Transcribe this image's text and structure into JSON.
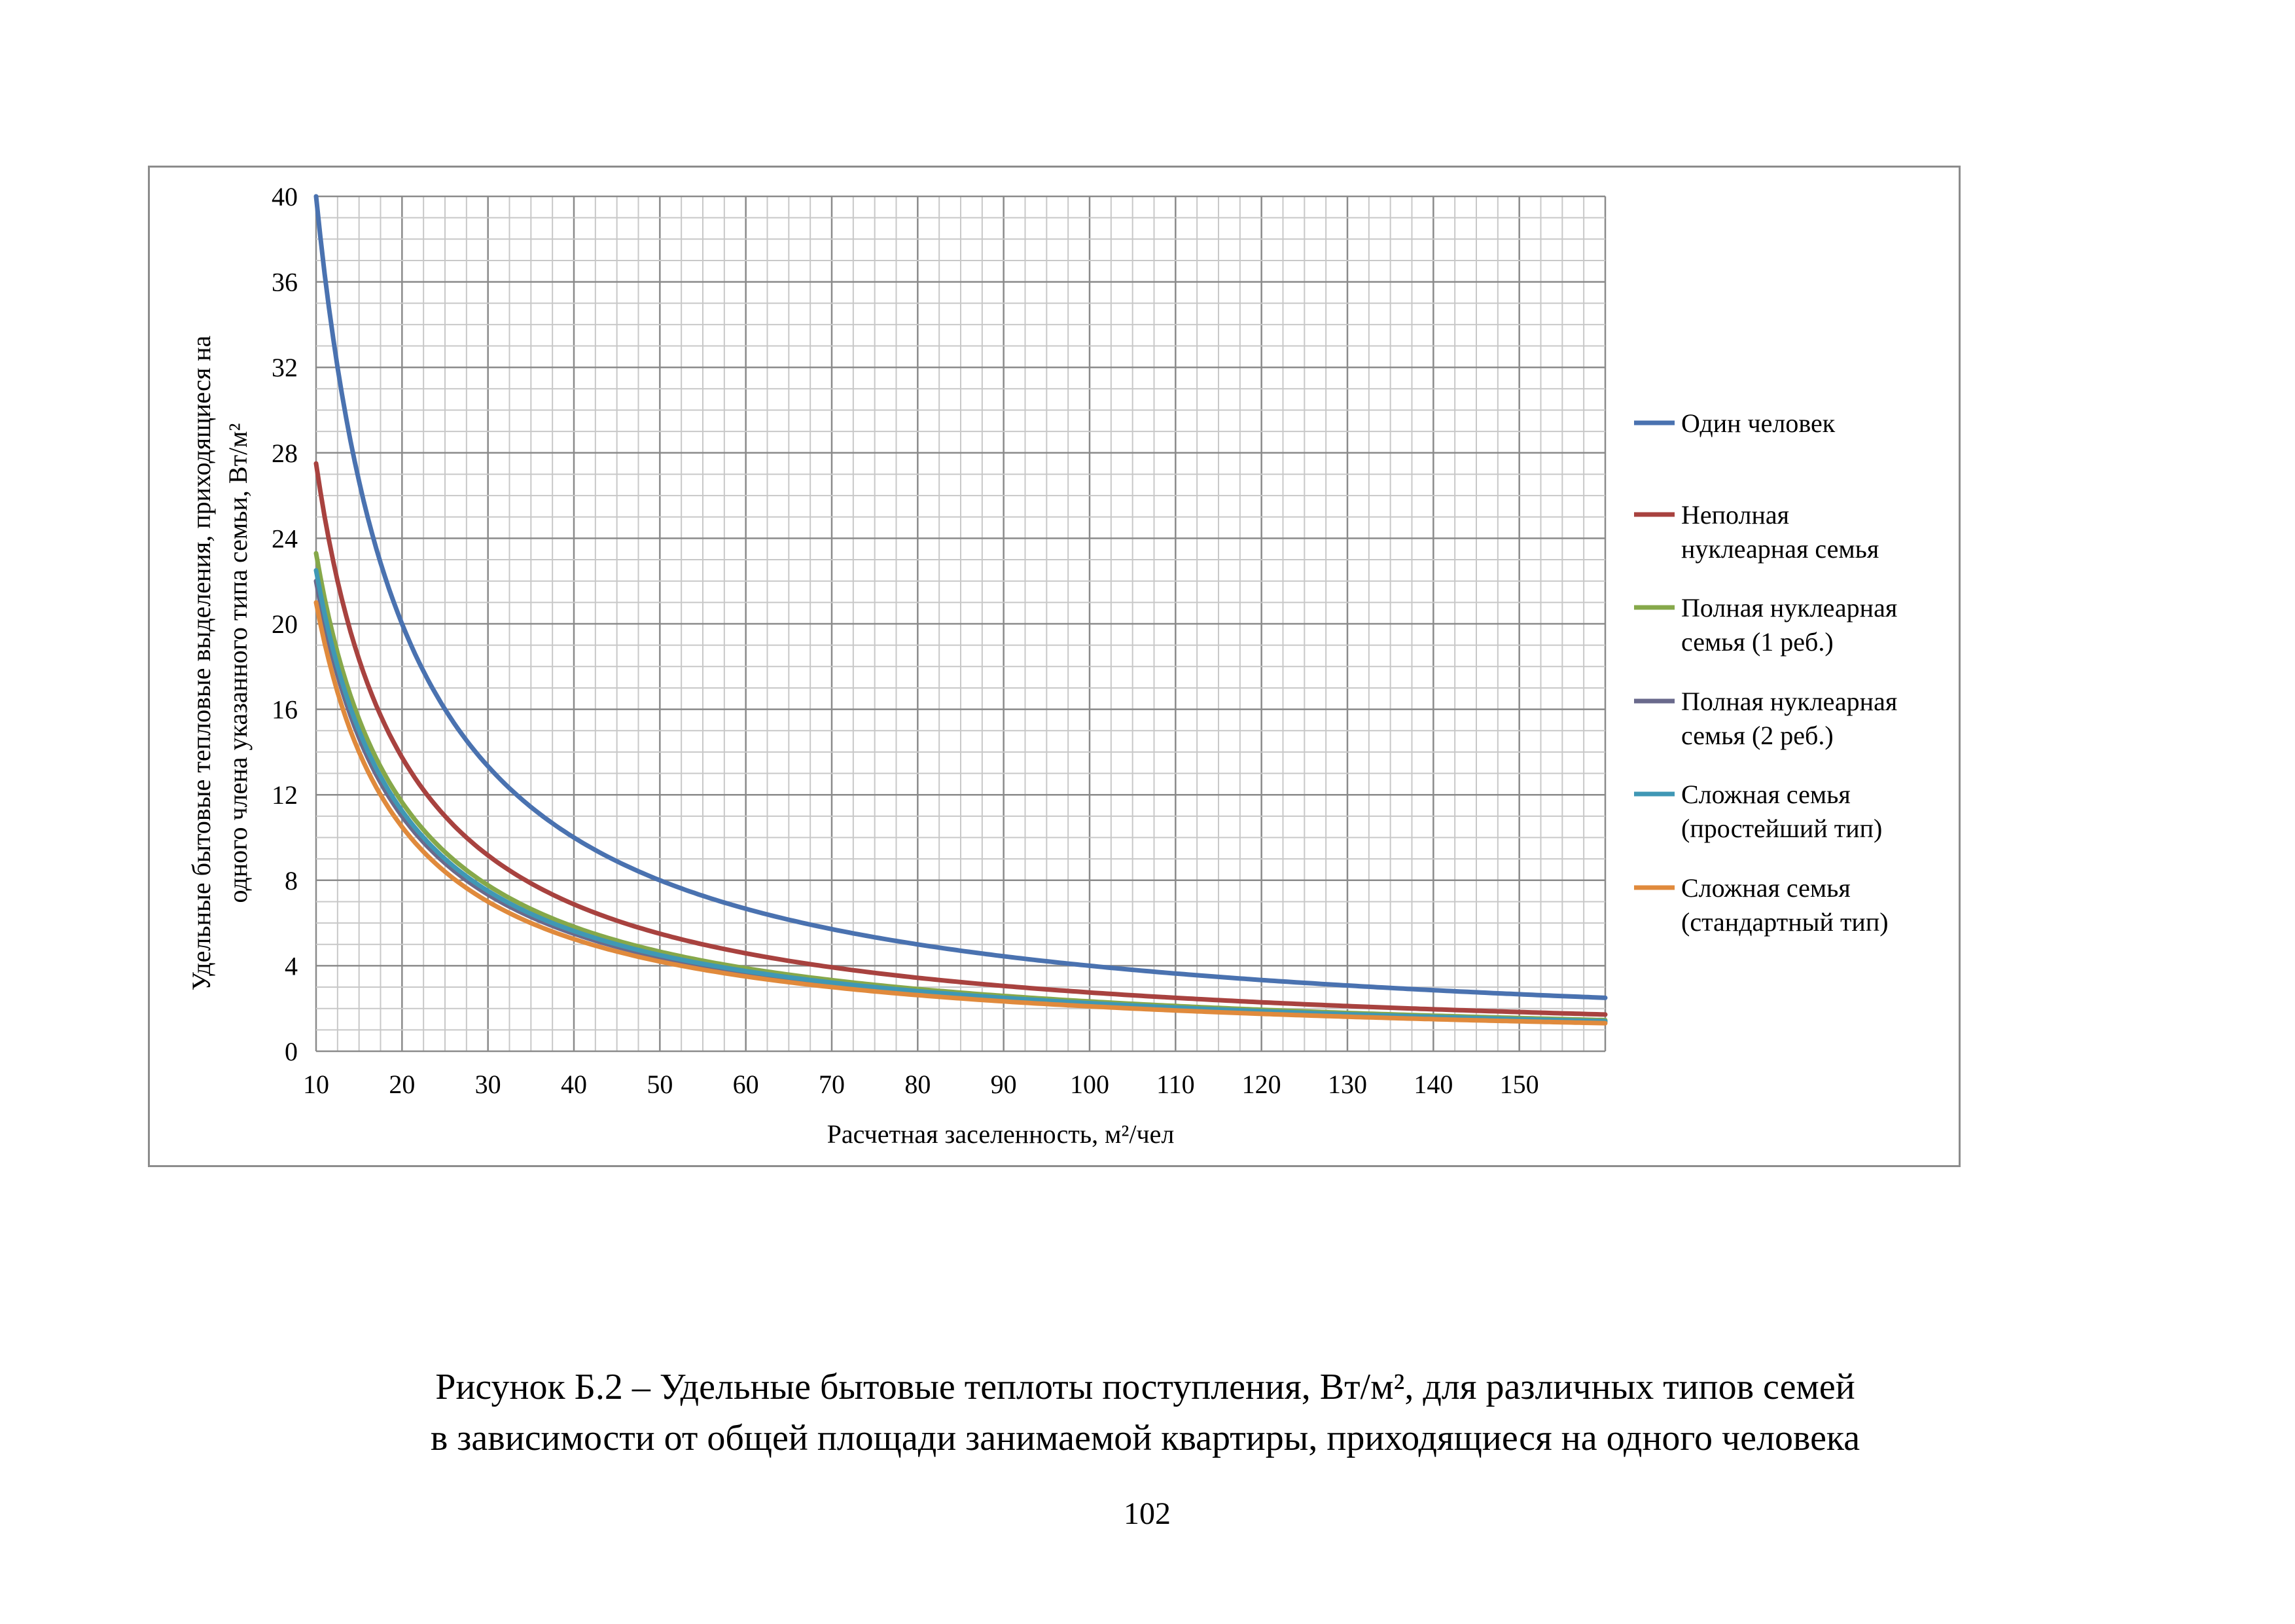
{
  "chart_data": {
    "type": "line",
    "xlabel": "Расчетная заселенность, м²/чел",
    "ylabel_line1": "Удельные бытовые тепловые выделения, приходящиеся на",
    "ylabel_line2": "одного члена указанного типа семьи, Вт/м²",
    "xlim": [
      10,
      160
    ],
    "ylim": [
      0,
      40
    ],
    "x_ticks": [
      10,
      20,
      30,
      40,
      50,
      60,
      70,
      80,
      90,
      100,
      110,
      120,
      130,
      140,
      150
    ],
    "y_ticks": [
      0,
      4,
      8,
      12,
      16,
      20,
      24,
      28,
      32,
      36,
      40
    ],
    "grid": true,
    "legend_position": "right",
    "x": [
      10,
      12,
      14,
      16,
      18,
      20,
      25,
      30,
      35,
      40,
      50,
      60,
      70,
      80,
      90,
      100,
      110,
      120,
      130,
      140,
      150,
      160
    ],
    "series": [
      {
        "name": "Один человек",
        "color": "#4a72b0",
        "values": [
          40.0,
          33.3,
          28.6,
          25.0,
          22.2,
          20.0,
          16.0,
          13.3,
          11.4,
          10.0,
          8.0,
          6.7,
          5.7,
          5.0,
          4.4,
          4.0,
          3.6,
          3.3,
          3.1,
          2.9,
          2.7,
          2.5
        ]
      },
      {
        "name": "Неполная нуклеарная семья",
        "color": "#a8423f",
        "values": [
          27.5,
          22.9,
          19.6,
          17.2,
          15.3,
          13.8,
          11.0,
          9.2,
          7.9,
          6.9,
          5.5,
          4.6,
          3.9,
          3.4,
          3.1,
          2.75,
          2.5,
          2.3,
          2.1,
          2.0,
          1.8,
          1.7
        ]
      },
      {
        "name": "Полная нуклеарная семья (1 реб.)",
        "color": "#86a84a",
        "values": [
          23.3,
          19.4,
          16.6,
          14.6,
          12.9,
          11.7,
          9.3,
          7.8,
          6.7,
          5.8,
          4.7,
          3.9,
          3.3,
          2.9,
          2.6,
          2.3,
          2.1,
          1.9,
          1.8,
          1.7,
          1.6,
          1.5
        ]
      },
      {
        "name": "Полная нуклеарная семья (2 реб.)",
        "color": "#6a6a8c",
        "values": [
          22.0,
          18.3,
          15.7,
          13.8,
          12.2,
          11.0,
          8.8,
          7.3,
          6.3,
          5.5,
          4.4,
          3.7,
          3.1,
          2.75,
          2.4,
          2.2,
          2.0,
          1.8,
          1.7,
          1.6,
          1.5,
          1.4
        ]
      },
      {
        "name": "Сложная семья (простейший тип)",
        "color": "#3f98b5",
        "values": [
          22.5,
          18.8,
          16.1,
          14.1,
          12.5,
          11.3,
          9.0,
          7.5,
          6.4,
          5.6,
          4.5,
          3.75,
          3.2,
          2.8,
          2.5,
          2.25,
          2.0,
          1.9,
          1.7,
          1.6,
          1.5,
          1.4
        ]
      },
      {
        "name": "Сложная семья (стандартный тип)",
        "color": "#e08a3c",
        "values": [
          21.0,
          17.5,
          15.0,
          13.1,
          11.7,
          10.5,
          8.4,
          7.0,
          6.0,
          5.25,
          4.2,
          3.5,
          3.0,
          2.6,
          2.3,
          2.1,
          1.9,
          1.75,
          1.6,
          1.5,
          1.4,
          1.3
        ]
      }
    ],
    "legend_labels": [
      [
        "Один человек"
      ],
      [
        "Неполная",
        "нуклеарная семья"
      ],
      [
        "Полная нуклеарная",
        "семья (1 реб.)"
      ],
      [
        "Полная нуклеарная",
        "семья (2 реб.)"
      ],
      [
        "Сложная семья",
        "(простейший тип)"
      ],
      [
        "Сложная семья",
        "(стандартный тип)"
      ]
    ]
  },
  "caption": {
    "line1": "Рисунок Б.2 – Удельные бытовые теплоты поступления, Вт/м², для различных типов семей",
    "line2": "в зависимости от общей площади занимаемой квартиры, приходящиеся на одного человека"
  },
  "page_number": "102"
}
